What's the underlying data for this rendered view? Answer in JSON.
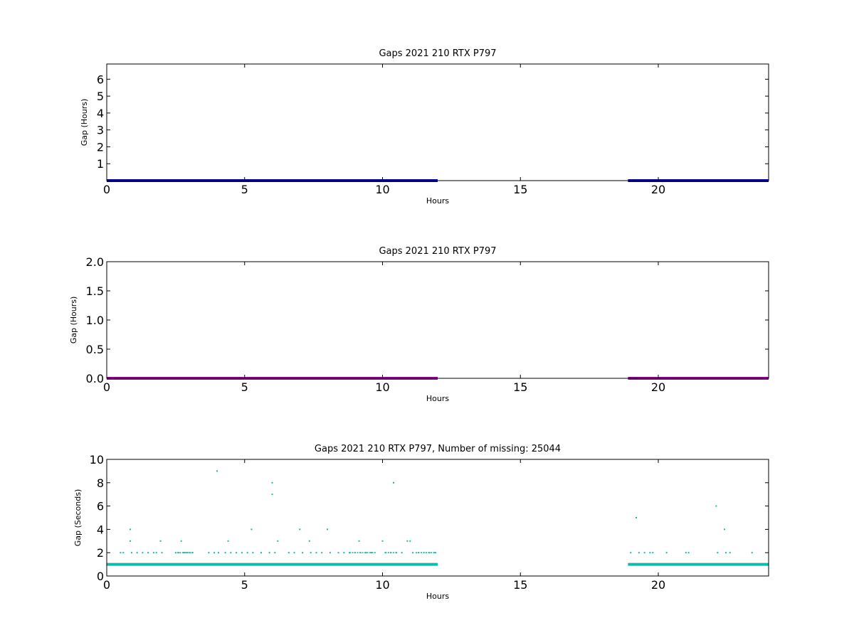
{
  "chart_data": [
    {
      "type": "scatter",
      "title": "Gaps 2021 210 RTX  P797",
      "xlabel": "Hours",
      "ylabel": "Gap (Hours)",
      "xlim": [
        0,
        24
      ],
      "ylim": [
        0,
        6.9
      ],
      "xticks": [
        "0",
        "5",
        "10",
        "15",
        "20"
      ],
      "xtick_values": [
        0,
        5,
        10,
        15,
        20
      ],
      "yticks": [
        "1",
        "2",
        "3",
        "4",
        "5",
        "6"
      ],
      "ytick_values": [
        1,
        2,
        3,
        4,
        5,
        6
      ],
      "grid": false,
      "color": "#0000aa",
      "series": [
        {
          "segments": [
            [
              0,
              12.0
            ],
            [
              18.9,
              24
            ]
          ],
          "y": 0.0
        }
      ]
    },
    {
      "type": "scatter",
      "title": "Gaps 2021 210 RTX  P797",
      "xlabel": "Hours",
      "ylabel": "Gap (Hours)",
      "xlim": [
        0,
        24
      ],
      "ylim": [
        0,
        2.0
      ],
      "xticks": [
        "0",
        "5",
        "10",
        "15",
        "20"
      ],
      "xtick_values": [
        0,
        5,
        10,
        15,
        20
      ],
      "yticks": [
        "0.0",
        "0.5",
        "1.0",
        "1.5",
        "2.0"
      ],
      "ytick_values": [
        0,
        0.5,
        1.0,
        1.5,
        2.0
      ],
      "grid": false,
      "color": "#990099",
      "series": [
        {
          "segments": [
            [
              0,
              12.0
            ],
            [
              18.9,
              24
            ]
          ],
          "y": 0.0
        }
      ]
    },
    {
      "type": "scatter",
      "title": "Gaps 2021 210 RTX  P797, Number of missing: 25044",
      "xlabel": "Hours",
      "ylabel": "Gap (Seconds)",
      "xlim": [
        0,
        24
      ],
      "ylim": [
        0,
        10
      ],
      "xticks": [
        "0",
        "5",
        "10",
        "15",
        "20"
      ],
      "xtick_values": [
        0,
        5,
        10,
        15,
        20
      ],
      "yticks": [
        "0",
        "2",
        "4",
        "6",
        "8",
        "10"
      ],
      "ytick_values": [
        0,
        2,
        4,
        6,
        8,
        10
      ],
      "grid": false,
      "color": "#11bbaa",
      "series": [
        {
          "segments": [
            [
              0,
              12.0
            ],
            [
              18.9,
              24
            ]
          ],
          "y": 1
        }
      ],
      "points": [
        [
          0.5,
          2
        ],
        [
          0.6,
          2
        ],
        [
          0.85,
          4
        ],
        [
          0.85,
          3
        ],
        [
          0.9,
          2
        ],
        [
          1.1,
          2
        ],
        [
          1.3,
          2
        ],
        [
          1.5,
          2
        ],
        [
          1.7,
          2
        ],
        [
          1.8,
          2
        ],
        [
          1.95,
          3
        ],
        [
          2.0,
          2
        ],
        [
          2.5,
          2
        ],
        [
          2.6,
          2
        ],
        [
          2.7,
          3
        ],
        [
          2.8,
          2
        ],
        [
          2.9,
          2
        ],
        [
          3.0,
          2
        ],
        [
          3.1,
          2
        ],
        [
          3.7,
          2
        ],
        [
          3.9,
          2
        ],
        [
          4.0,
          9
        ],
        [
          4.05,
          2
        ],
        [
          4.3,
          2
        ],
        [
          4.4,
          3
        ],
        [
          4.5,
          2
        ],
        [
          4.7,
          2
        ],
        [
          4.9,
          2
        ],
        [
          5.1,
          2
        ],
        [
          5.25,
          4
        ],
        [
          5.3,
          2
        ],
        [
          5.6,
          2
        ],
        [
          5.9,
          2
        ],
        [
          6.0,
          8
        ],
        [
          6.0,
          7
        ],
        [
          6.1,
          2
        ],
        [
          6.2,
          3
        ],
        [
          6.6,
          2
        ],
        [
          6.8,
          2
        ],
        [
          7.0,
          4
        ],
        [
          7.1,
          2
        ],
        [
          7.35,
          3
        ],
        [
          7.4,
          2
        ],
        [
          7.6,
          2
        ],
        [
          7.8,
          2
        ],
        [
          8.0,
          4
        ],
        [
          8.1,
          2
        ],
        [
          8.4,
          2
        ],
        [
          8.6,
          2
        ],
        [
          8.8,
          2
        ],
        [
          9.0,
          2
        ],
        [
          9.15,
          3
        ],
        [
          9.2,
          2
        ],
        [
          9.4,
          2
        ],
        [
          9.6,
          2
        ],
        [
          10.0,
          3
        ],
        [
          10.1,
          2
        ],
        [
          10.3,
          2
        ],
        [
          10.4,
          8
        ],
        [
          10.5,
          2
        ],
        [
          10.7,
          2
        ],
        [
          10.9,
          3
        ],
        [
          11.0,
          3
        ],
        [
          11.1,
          2
        ],
        [
          11.3,
          2
        ],
        [
          11.5,
          2
        ],
        [
          11.7,
          2
        ],
        [
          11.9,
          2
        ],
        [
          19.0,
          2
        ],
        [
          19.2,
          5
        ],
        [
          19.3,
          2
        ],
        [
          19.5,
          2
        ],
        [
          19.7,
          2
        ],
        [
          19.8,
          2
        ],
        [
          20.3,
          2
        ],
        [
          21.0,
          2
        ],
        [
          21.1,
          2
        ],
        [
          22.1,
          6
        ],
        [
          22.15,
          2
        ],
        [
          22.4,
          4
        ],
        [
          22.45,
          2
        ],
        [
          22.6,
          2
        ],
        [
          23.4,
          2
        ]
      ],
      "dense_ranges_y2": [
        [
          2.55,
          3.15
        ],
        [
          8.8,
          9.75
        ],
        [
          10.1,
          10.5
        ],
        [
          11.2,
          11.95
        ]
      ]
    }
  ]
}
